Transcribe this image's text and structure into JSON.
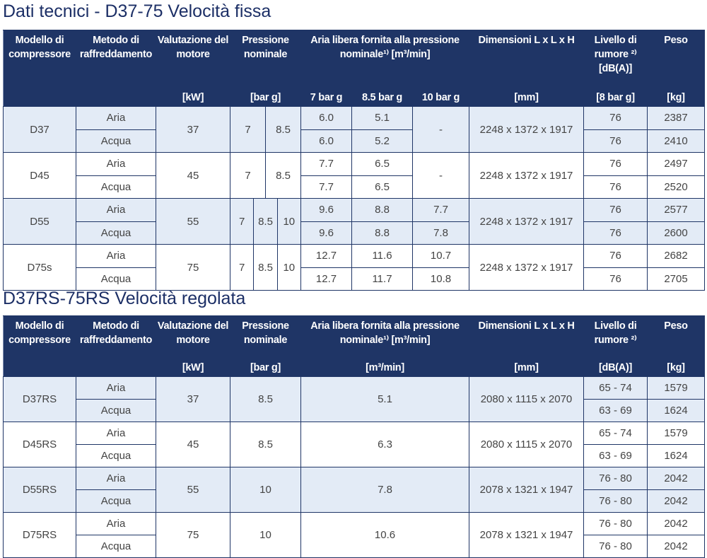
{
  "title1": "Dati tecnici - D37-75 Velocità fissa",
  "table1": {
    "header": [
      "Modello di compressore",
      "Metodo di raffreddamento",
      "Valutazione del motore",
      "Pressione nominale",
      "Aria libera fornita alla pressione nominale¹⁾ [m³/min]",
      "Dimensioni L x L x H",
      "Livello di rumore ²⁾ [dB(A)]",
      "Peso"
    ],
    "units": [
      "[kW]",
      "[bar g]",
      "7 bar g",
      "8.5 bar g",
      "10 bar g",
      "[mm]",
      "[8 bar g]",
      "[kg]"
    ],
    "rows": [
      {
        "model": "D37",
        "cooling": [
          "Aria",
          "Acqua"
        ],
        "power": "37",
        "pressure": [
          "7",
          "8.5"
        ],
        "flow": [
          [
            "6.0",
            "6.0"
          ],
          [
            "5.1",
            "5.2"
          ],
          "-"
        ],
        "dims": "2248 x 1372 x 1917",
        "noise": [
          "76",
          "76"
        ],
        "weight": [
          "2387",
          "2410"
        ]
      },
      {
        "model": "D45",
        "cooling": [
          "Aria",
          "Acqua"
        ],
        "power": "45",
        "pressure": [
          "7",
          "8.5"
        ],
        "flow": [
          [
            "7.7",
            "7.7"
          ],
          [
            "6.5",
            "6.5"
          ],
          "-"
        ],
        "dims": "2248 x 1372 x 1917",
        "noise": [
          "76",
          "76"
        ],
        "weight": [
          "2497",
          "2520"
        ]
      },
      {
        "model": "D55",
        "cooling": [
          "Aria",
          "Acqua"
        ],
        "power": "55",
        "pressure": [
          "7",
          "8.5",
          "10"
        ],
        "flow": [
          [
            "9.6",
            "9.6"
          ],
          [
            "8.8",
            "8.8"
          ],
          [
            "7.7",
            "7.8"
          ]
        ],
        "dims": "2248 x 1372 x 1917",
        "noise": [
          "76",
          "76"
        ],
        "weight": [
          "2577",
          "2600"
        ]
      },
      {
        "model": "D75s",
        "cooling": [
          "Aria",
          "Acqua"
        ],
        "power": "75",
        "pressure": [
          "7",
          "8.5",
          "10"
        ],
        "flow": [
          [
            "12.7",
            "12.7"
          ],
          [
            "11.6",
            "11.7"
          ],
          [
            "10.7",
            "10.8"
          ]
        ],
        "dims": "2248 x 1372 x 1917",
        "noise": [
          "76",
          "76"
        ],
        "weight": [
          "2682",
          "2705"
        ]
      }
    ]
  },
  "title2": "D37RS-75RS Velocità regolata",
  "table2": {
    "header": [
      "Modello di compressore",
      "Metodo di raffreddamento",
      "Valutazione del motore",
      "Pressione nominale",
      "Aria libera fornita alla pressione nominale¹⁾ [m³/min]",
      "Dimensioni L x L x H",
      "Livello di rumore ²⁾",
      "Peso"
    ],
    "units": [
      "[kW]",
      "[bar g]",
      "[m³/min]",
      "[mm]",
      "[dB(A)]",
      "[kg]"
    ],
    "rows": [
      {
        "model": "D37RS",
        "cooling": [
          "Aria",
          "Acqua"
        ],
        "power": "37",
        "pressure": "8.5",
        "flow": "5.1",
        "dims": "2080 x 1115 x 2070",
        "noise": [
          "65 - 74",
          "63 - 69"
        ],
        "weight": [
          "1579",
          "1624"
        ]
      },
      {
        "model": "D45RS",
        "cooling": [
          "Aria",
          "Acqua"
        ],
        "power": "45",
        "pressure": "8.5",
        "flow": "6.3",
        "dims": "2080 x 1115 x 2070",
        "noise": [
          "65 - 74",
          "63 - 69"
        ],
        "weight": [
          "1579",
          "1624"
        ]
      },
      {
        "model": "D55RS",
        "cooling": [
          "Aria",
          "Acqua"
        ],
        "power": "55",
        "pressure": "10",
        "flow": "7.8",
        "dims": "2078 x 1321 x 1947",
        "noise": [
          "76 - 80",
          "76 - 80"
        ],
        "weight": [
          "2042",
          "2042"
        ]
      },
      {
        "model": "D75RS",
        "cooling": [
          "Aria",
          "Acqua"
        ],
        "power": "75",
        "pressure": "10",
        "flow": "10.6",
        "dims": "2078 x 1321 x 1947",
        "noise": [
          "76 - 80",
          "76 - 80"
        ],
        "weight": [
          "2042",
          "2042"
        ]
      }
    ]
  }
}
